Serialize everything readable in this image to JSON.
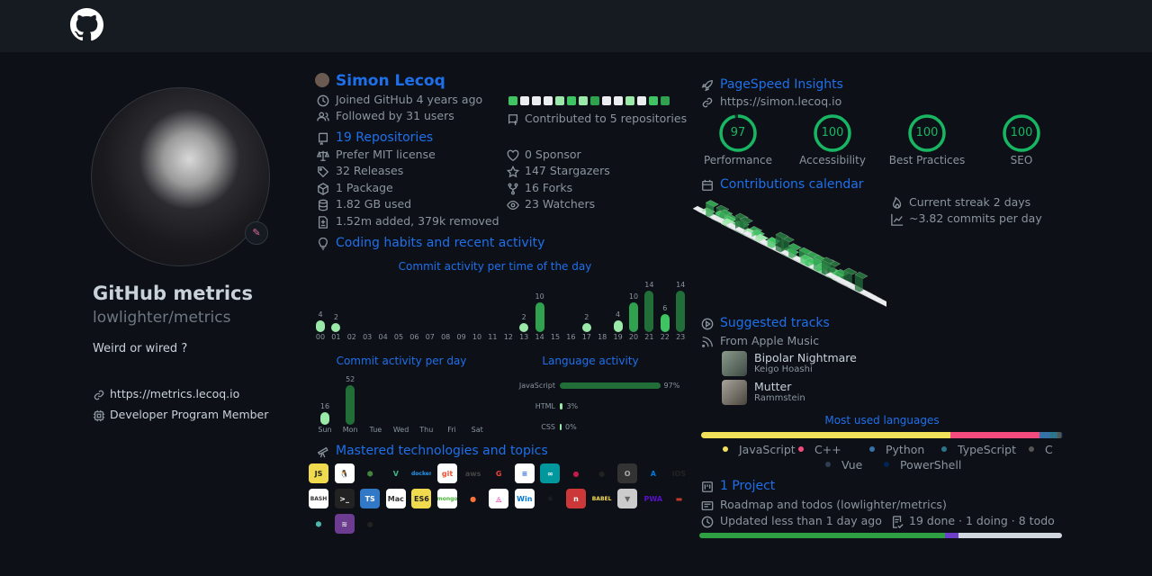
{
  "header": {
    "logo": "github-logo-icon"
  },
  "profile": {
    "name": "GitHub metrics",
    "login": "lowlighter/metrics",
    "bio": "Weird or wired ?",
    "website": "https://metrics.lecoq.io",
    "badge": "Developer Program Member"
  },
  "user": {
    "name": "Simon Lecoq",
    "joined": "Joined GitHub 4 years ago",
    "followers": "Followed by 31 users",
    "contributed": "Contributed to 5 repositories",
    "calendar_strip": [
      "#40c463",
      "#ebedf0",
      "#ebedf0",
      "#ebedf0",
      "#9be9a8",
      "#40c463",
      "#9be9a8",
      "#30a14e",
      "#ebedf0",
      "#ebedf0",
      "#9be9a8",
      "#ebedf0",
      "#40c463",
      "#30a14e"
    ]
  },
  "repos": {
    "title": "19 Repositories",
    "license": "Prefer MIT license",
    "releases": "32 Releases",
    "packages": "1 Package",
    "disk": "1.82 GB used",
    "changes": "1.52m added, 379k removed",
    "sponsors": "0 Sponsor",
    "stargazers": "147 Stargazers",
    "forks": "16 Forks",
    "watchers": "23 Watchers"
  },
  "habits": {
    "title": "Coding habits and recent activity",
    "hours_title": "Commit activity per time of the day",
    "days_title": "Commit activity per day",
    "lang_title": "Language activity"
  },
  "chart_data": [
    {
      "type": "bar",
      "title": "Commit activity per time of the day",
      "categories": [
        "00",
        "01",
        "02",
        "03",
        "04",
        "05",
        "06",
        "07",
        "08",
        "09",
        "10",
        "11",
        "12",
        "13",
        "14",
        "15",
        "16",
        "17",
        "18",
        "19",
        "20",
        "21",
        "22",
        "23"
      ],
      "values": [
        4,
        2,
        0,
        0,
        0,
        0,
        0,
        0,
        0,
        0,
        0,
        0,
        0,
        2,
        10,
        0,
        0,
        2,
        0,
        4,
        10,
        14,
        6,
        14
      ]
    },
    {
      "type": "bar",
      "title": "Commit activity per day",
      "categories": [
        "Sun",
        "Mon",
        "Tue",
        "Wed",
        "Thu",
        "Fri",
        "Sat"
      ],
      "values": [
        16,
        52,
        0,
        0,
        0,
        0,
        0
      ]
    },
    {
      "type": "bar",
      "title": "Language activity",
      "categories": [
        "JavaScript",
        "HTML",
        "CSS"
      ],
      "values": [
        97,
        3,
        0
      ],
      "labels": [
        "97%",
        "3%",
        "0%"
      ]
    }
  ],
  "technologies": {
    "title": "Mastered technologies and topics",
    "items": [
      {
        "name": "javascript",
        "label": "JS",
        "bg": "#f0db4f",
        "fg": "#222"
      },
      {
        "name": "linux",
        "label": "🐧",
        "bg": "#fff",
        "fg": "#000"
      },
      {
        "name": "nodejs",
        "label": "⬢",
        "bg": "transparent",
        "fg": "#43853d"
      },
      {
        "name": "vue",
        "label": "V",
        "bg": "transparent",
        "fg": "#41b883"
      },
      {
        "name": "docker",
        "label": "docker",
        "bg": "transparent",
        "fg": "#2496ed"
      },
      {
        "name": "git",
        "label": "git",
        "bg": "#fff",
        "fg": "#f05032"
      },
      {
        "name": "aws",
        "label": "aws",
        "bg": "transparent",
        "fg": "#444"
      },
      {
        "name": "google",
        "label": "G",
        "bg": "transparent",
        "fg": "#ea4335"
      },
      {
        "name": "database",
        "label": "≡",
        "bg": "#fff",
        "fg": "#3b6fd8"
      },
      {
        "name": "arduino",
        "label": "∞",
        "bg": "#00979d",
        "fg": "#fff"
      },
      {
        "name": "raspberry-pi",
        "label": "●",
        "bg": "transparent",
        "fg": "#c51a4a"
      },
      {
        "name": "github",
        "label": "●",
        "bg": "transparent",
        "fg": "#222"
      },
      {
        "name": "json",
        "label": "O",
        "bg": "#333",
        "fg": "#aaa"
      },
      {
        "name": "azure",
        "label": "A",
        "bg": "transparent",
        "fg": "#0078d4"
      },
      {
        "name": "ios",
        "label": "iOS",
        "bg": "transparent",
        "fg": "#222"
      },
      {
        "name": "bash",
        "label": "BASH",
        "bg": "#fff",
        "fg": "#333"
      },
      {
        "name": "terminal",
        "label": ">_",
        "bg": "#222",
        "fg": "#fff"
      },
      {
        "name": "typescript",
        "label": "TS",
        "bg": "#3178c6",
        "fg": "#fff"
      },
      {
        "name": "mac",
        "label": "Mac",
        "bg": "#fff",
        "fg": "#333"
      },
      {
        "name": "es6",
        "label": "ES6",
        "bg": "#f0db4f",
        "fg": "#222"
      },
      {
        "name": "mongodb",
        "label": "mongo",
        "bg": "#fff",
        "fg": "#4db33d"
      },
      {
        "name": "firefox",
        "label": "●",
        "bg": "transparent",
        "fg": "#ff7139"
      },
      {
        "name": "graphql",
        "label": "◬",
        "bg": "#fff",
        "fg": "#e10098"
      },
      {
        "name": "windows",
        "label": "Win",
        "bg": "#fff",
        "fg": "#0078d4"
      },
      {
        "name": "electron",
        "label": "⚛",
        "bg": "transparent",
        "fg": "#333"
      },
      {
        "name": "npm",
        "label": "n",
        "bg": "#cb3837",
        "fg": "#fff"
      },
      {
        "name": "babel",
        "label": "BABEL",
        "bg": "transparent",
        "fg": "#f5da55"
      },
      {
        "name": "vercel",
        "label": "▼",
        "bg": "#ccc",
        "fg": "#666"
      },
      {
        "name": "pwa",
        "label": "PWA",
        "bg": "transparent",
        "fg": "#5a0fc8"
      },
      {
        "name": "redux-saga",
        "label": "▬",
        "bg": "transparent",
        "fg": "#c0392b"
      },
      {
        "name": "nodejs-small",
        "label": "⬢",
        "bg": "transparent",
        "fg": "#4db6ac"
      },
      {
        "name": "heroku",
        "label": "≋",
        "bg": "#6b3c8f",
        "fg": "#ddd"
      },
      {
        "name": "deno",
        "label": "●",
        "bg": "transparent",
        "fg": "#222"
      }
    ]
  },
  "pagespeed": {
    "title": "PageSpeed Insights",
    "url": "https://simon.lecoq.io",
    "scores": [
      {
        "label": "Performance",
        "value": 97
      },
      {
        "label": "Accessibility",
        "value": 100
      },
      {
        "label": "Best Practices",
        "value": 100
      },
      {
        "label": "SEO",
        "value": 100
      }
    ],
    "color": "#18b663"
  },
  "calendar": {
    "title": "Contributions calendar",
    "streak": "Current streak 2 days",
    "average": "~3.82 commits per day"
  },
  "tracks": {
    "title": "Suggested tracks",
    "source": "From Apple Music",
    "items": [
      {
        "title": "Bipolar Nightmare",
        "artist": "Keigo Hoashi"
      },
      {
        "title": "Mutter",
        "artist": "Rammstein"
      }
    ]
  },
  "languages": {
    "title": "Most used languages",
    "items": [
      {
        "name": "JavaScript",
        "color": "#f1e05a",
        "share": 69
      },
      {
        "name": "C++",
        "color": "#f34b7d",
        "share": 24.6
      },
      {
        "name": "Python",
        "color": "#3572a5",
        "share": 3
      },
      {
        "name": "TypeScript",
        "color": "#2b7489",
        "share": 2
      },
      {
        "name": "C",
        "color": "#555555",
        "share": 0.8
      },
      {
        "name": "Vue",
        "color": "#2c3e50",
        "share": 0.4
      },
      {
        "name": "PowerShell",
        "color": "#012456",
        "share": 0.2
      }
    ]
  },
  "projects": {
    "title": "1 Project",
    "name": "Roadmap and todos (lowlighter/metrics)",
    "updated": "Updated less than 1 day ago",
    "progress_text": "19 done · 1 doing · 8 todo",
    "done": 19,
    "doing": 1,
    "todo": 8
  }
}
